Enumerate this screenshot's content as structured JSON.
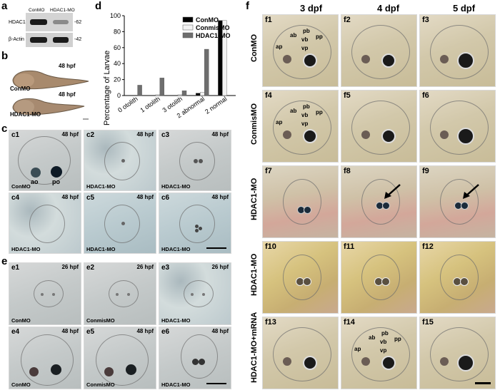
{
  "panel_letters": {
    "a": "a",
    "b": "b",
    "c": "c",
    "d": "d",
    "e": "e",
    "f": "f"
  },
  "panel_a": {
    "lanes": [
      "ConMO",
      "HDAC1-MO"
    ],
    "rows": [
      {
        "label": "HDAC1",
        "kda": "-62"
      },
      {
        "label": "β-Actin",
        "kda": "-42"
      }
    ]
  },
  "panel_b": {
    "hpf": "48 hpf",
    "samples": [
      "ConMO",
      "HDAC1-MO"
    ]
  },
  "panel_c": [
    {
      "id": "c1",
      "cap": "ConMO",
      "hpf": "48 hpf",
      "ao": "ao",
      "po": "po"
    },
    {
      "id": "c2",
      "cap": "HDAC1-MO",
      "hpf": "48 hpf"
    },
    {
      "id": "c3",
      "cap": "HDAC1-MO",
      "hpf": "48 hpf"
    },
    {
      "id": "c4",
      "cap": "HDAC1-MO",
      "hpf": "48 hpf"
    },
    {
      "id": "c5",
      "cap": "HDAC1-MO",
      "hpf": "48 hpf"
    },
    {
      "id": "c6",
      "cap": "HDAC1-MO",
      "hpf": "48 hpf"
    }
  ],
  "panel_e": [
    {
      "id": "e1",
      "cap": "ConMO",
      "hpf": "26 hpf"
    },
    {
      "id": "e2",
      "cap": "ConmisMO",
      "hpf": "26 hpf"
    },
    {
      "id": "e3",
      "cap": "HDAC1-MO",
      "hpf": "26 hpf"
    },
    {
      "id": "e4",
      "cap": "ConMO",
      "hpf": "48 hpf"
    },
    {
      "id": "e5",
      "cap": "ConmisMO",
      "hpf": "48 hpf"
    },
    {
      "id": "e6",
      "cap": "HDAC1-MO",
      "hpf": "48 hpf"
    }
  ],
  "chart_data": {
    "type": "bar",
    "ylabel": "Percentage of Larvae",
    "ylim": [
      0,
      100
    ],
    "yticks": [
      0,
      20,
      40,
      60,
      80,
      100
    ],
    "categories": [
      "0 otolith",
      "1 otolith",
      "3 otolith",
      "2 abnormal",
      "2 normal"
    ],
    "series": [
      {
        "name": "ConMO",
        "values": [
          0,
          0,
          0,
          3,
          94
        ]
      },
      {
        "name": "ConmisMO",
        "values": [
          0,
          1,
          1,
          4,
          94
        ]
      },
      {
        "name": "HDAC1-MO",
        "values": [
          13,
          22,
          6,
          58,
          0
        ]
      }
    ],
    "colors": {
      "ConMO": "#000000",
      "ConmisMO": "#f2f2f2",
      "HDAC1-MO": "#6e6e6e"
    },
    "legend": "top-right",
    "grid": false
  },
  "panel_f": {
    "columns": [
      "3 dpf",
      "4 dpf",
      "5 dpf"
    ],
    "rows": [
      {
        "label": "ConMO",
        "ids": [
          "f1",
          "f2",
          "f3"
        ]
      },
      {
        "label": "ConmisMO",
        "ids": [
          "f4",
          "f5",
          "f6"
        ]
      },
      {
        "label": "HDAC1-MO",
        "ids": [
          "f7",
          "f8",
          "f9"
        ]
      },
      {
        "label": "HDAC1-MO",
        "ids": [
          "f10",
          "f11",
          "f12"
        ]
      },
      {
        "label": "HDAC1-MO+mRNA",
        "ids": [
          "f13",
          "f14",
          "f15"
        ]
      }
    ],
    "annotations": {
      "ap": "ap",
      "ab": "ab",
      "pb": "pb",
      "vb": "vb",
      "vp": "vp",
      "pp": "pp"
    }
  }
}
